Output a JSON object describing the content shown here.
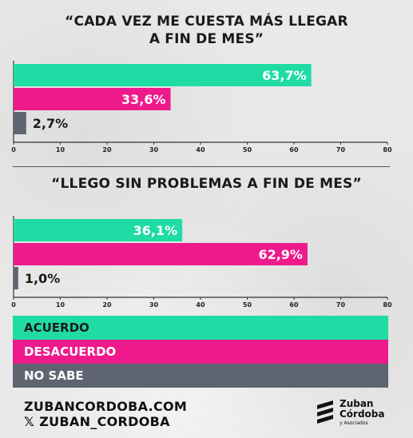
{
  "colors": {
    "acuerdo": "#1fdca4",
    "desacuerdo": "#ee1a8c",
    "no_sabe": "#5e6470",
    "text_dark": "#1a1a1a",
    "label_white": "#ffffff"
  },
  "chart_data": [
    {
      "type": "bar",
      "orientation": "horizontal",
      "title": "“CADA VEZ ME CUESTA MÁS LLEGAR A FIN DE MES”",
      "title_lines": [
        "“CADA VEZ ME CUESTA MÁS LLEGAR",
        "A FIN DE MES”"
      ],
      "categories": [
        "ACUERDO",
        "DESACUERDO",
        "NO SABE"
      ],
      "values": [
        63.7,
        33.6,
        2.7
      ],
      "value_labels": [
        "63,7%",
        "33,6%",
        "2,7%"
      ],
      "xlim": [
        0,
        80
      ],
      "x_ticks": [
        "0",
        "10",
        "20",
        "30",
        "40",
        "50",
        "60",
        "70",
        "80"
      ],
      "grid": false
    },
    {
      "type": "bar",
      "orientation": "horizontal",
      "title": "“LLEGO SIN PROBLEMAS A FIN DE MES”",
      "title_lines": [
        "“LLEGO SIN PROBLEMAS A FIN DE MES”"
      ],
      "categories": [
        "ACUERDO",
        "DESACUERDO",
        "NO SABE"
      ],
      "values": [
        36.1,
        62.9,
        1.0
      ],
      "value_labels": [
        "36,1%",
        "62,9%",
        "1,0%"
      ],
      "xlim": [
        0,
        80
      ],
      "x_ticks": [
        "0",
        "10",
        "20",
        "30",
        "40",
        "50",
        "60",
        "70",
        "80"
      ],
      "grid": false
    }
  ],
  "legend": {
    "acuerdo": "ACUERDO",
    "desacuerdo": "DESACUERDO",
    "no_sabe": "NO SABE"
  },
  "footer": {
    "website": "ZUBANCORDOBA.COM",
    "x_handle": "ZUBAN_CORDOBA",
    "x_icon": "x-logo-icon"
  },
  "logo": {
    "line1": "Zuban",
    "line2": "Córdoba",
    "sub": "y Asociados"
  }
}
